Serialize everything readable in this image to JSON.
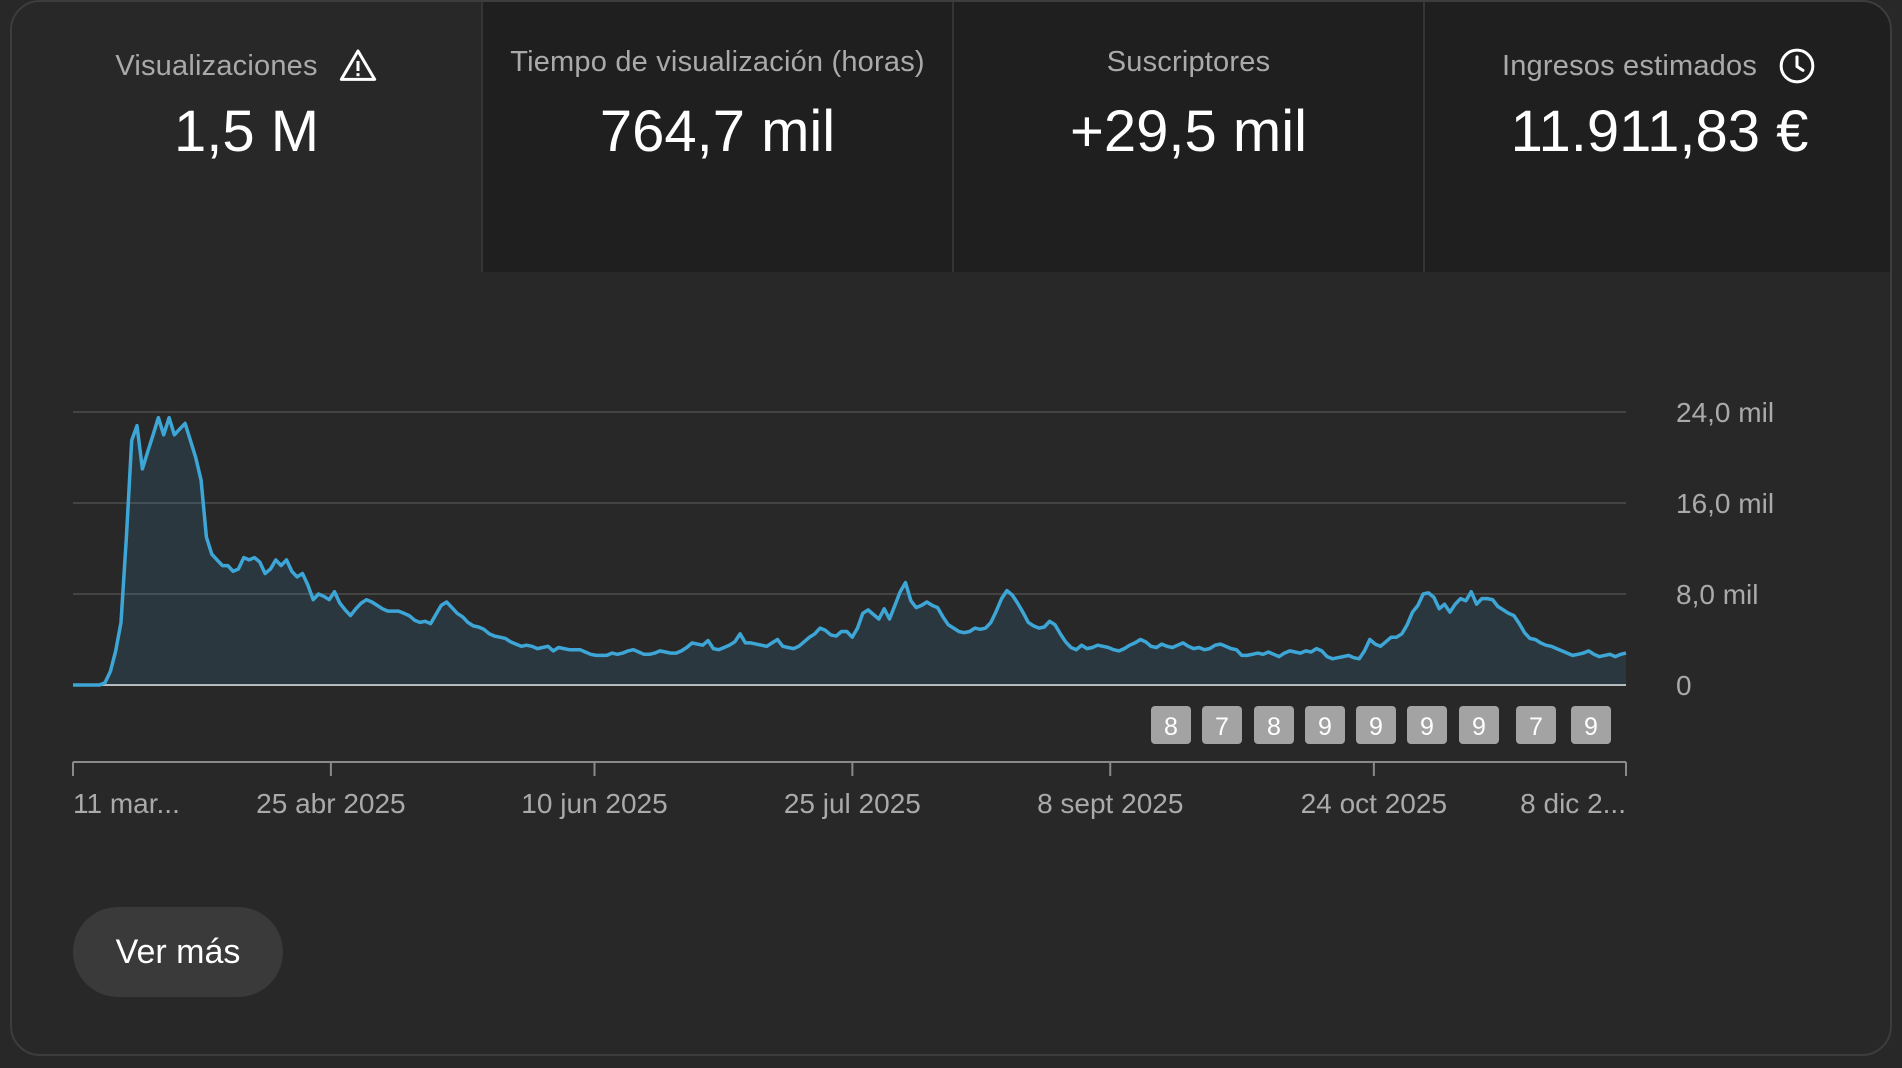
{
  "metrics": [
    {
      "label": "Visualizaciones",
      "value": "1,5 M",
      "icon": "warning-icon",
      "active": true
    },
    {
      "label": "Tiempo de visualización (horas)",
      "value": "764,7 mil",
      "icon": null,
      "active": false
    },
    {
      "label": "Suscriptores",
      "value": "+29,5 mil",
      "icon": null,
      "active": false
    },
    {
      "label": "Ingresos estimados",
      "value": "11.911,83 €",
      "icon": "clock-icon",
      "active": false
    }
  ],
  "chart_data": {
    "type": "area",
    "ylim": [
      0,
      24000
    ],
    "y_ticks": [
      {
        "value": 0,
        "label": "0"
      },
      {
        "value": 8000,
        "label": "8,0 mil"
      },
      {
        "value": 16000,
        "label": "16,0 mil"
      },
      {
        "value": 24000,
        "label": "24,0 mil"
      }
    ],
    "x_ticks": [
      "11 mar...",
      "25 abr 2025",
      "10 jun 2025",
      "25 jul 2025",
      "8 sept 2025",
      "24 oct 2025",
      "8 dic 2..."
    ],
    "x_tick_days": [
      0,
      45,
      91,
      136,
      181,
      227,
      271
    ],
    "series": [
      {
        "color": "#3ea6d6",
        "values": [
          0,
          0,
          0,
          0,
          0,
          0,
          200,
          1200,
          3000,
          5500,
          13000,
          21500,
          22800,
          19000,
          20500,
          22000,
          23500,
          22000,
          23500,
          22000,
          22500,
          23000,
          21500,
          20000,
          18000,
          13000,
          11500,
          11000,
          10500,
          10500,
          10000,
          10200,
          11200,
          11000,
          11200,
          10800,
          9800,
          10200,
          11000,
          10500,
          11000,
          10000,
          9500,
          9800,
          8800,
          7500,
          8000,
          7800,
          7500,
          8200,
          7200,
          6600,
          6100,
          6700,
          7200,
          7500,
          7300,
          7000,
          6700,
          6500,
          6500,
          6500,
          6300,
          6100,
          5700,
          5500,
          5600,
          5400,
          6200,
          7000,
          7300,
          6800,
          6300,
          6000,
          5500,
          5200,
          5100,
          4900,
          4500,
          4300,
          4200,
          4100,
          3800,
          3600,
          3400,
          3500,
          3400,
          3200,
          3300,
          3400,
          3000,
          3300,
          3200,
          3100,
          3100,
          3100,
          2900,
          2700,
          2600,
          2600,
          2600,
          2800,
          2700,
          2800,
          3000,
          3100,
          2900,
          2700,
          2700,
          2800,
          3000,
          2900,
          2800,
          2800,
          3000,
          3300,
          3700,
          3600,
          3500,
          3900,
          3200,
          3100,
          3300,
          3500,
          3800,
          4500,
          3700,
          3700,
          3600,
          3500,
          3400,
          3700,
          4000,
          3400,
          3300,
          3200,
          3400,
          3800,
          4200,
          4500,
          5000,
          4800,
          4400,
          4300,
          4700,
          4700,
          4200,
          5000,
          6300,
          6600,
          6200,
          5800,
          6700,
          5800,
          7000,
          8200,
          9000,
          7400,
          6800,
          7000,
          7300,
          7000,
          6800,
          6000,
          5300,
          5000,
          4700,
          4600,
          4700,
          5000,
          4900,
          5000,
          5500,
          6500,
          7600,
          8300,
          7900,
          7200,
          6400,
          5500,
          5200,
          5000,
          5100,
          5600,
          5300,
          4500,
          3800,
          3300,
          3100,
          3500,
          3200,
          3300,
          3500,
          3400,
          3300,
          3100,
          3000,
          3200,
          3500,
          3700,
          4000,
          3800,
          3400,
          3300,
          3600,
          3400,
          3300,
          3500,
          3700,
          3400,
          3200,
          3300,
          3100,
          3200,
          3500,
          3600,
          3400,
          3200,
          3100,
          2600,
          2600,
          2700,
          2800,
          2700,
          2900,
          2700,
          2500,
          2800,
          3000,
          2900,
          2800,
          3000,
          2900,
          3200,
          3000,
          2500,
          2300,
          2400,
          2500,
          2600,
          2400,
          2300,
          3000,
          4000,
          3600,
          3400,
          3800,
          4200,
          4200,
          4500,
          5300,
          6400,
          7000,
          8000,
          8100,
          7700,
          6700,
          7100,
          6400,
          7100,
          7600,
          7400,
          8200,
          7100,
          7600,
          7600,
          7500,
          6900,
          6600,
          6300,
          6100,
          5400,
          4600,
          4100,
          4000,
          3700,
          3500,
          3400,
          3200,
          3000,
          2800,
          2600,
          2700,
          2800,
          3000,
          2700,
          2500,
          2600,
          2700,
          2500,
          2700,
          2800
        ]
      }
    ]
  },
  "event_markers": [
    "8",
    "7",
    "8",
    "9",
    "9",
    "9",
    "9",
    "7",
    "9"
  ],
  "more_button": {
    "label": "Ver más"
  }
}
